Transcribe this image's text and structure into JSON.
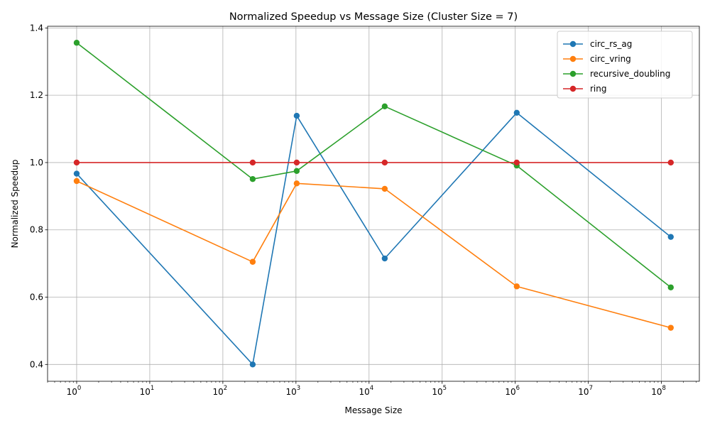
{
  "chart_data": {
    "type": "line",
    "title": "Normalized Speedup vs Message Size (Cluster Size = 7)",
    "xlabel": "Message Size",
    "ylabel": "Normalized Speedup",
    "xscale": "log",
    "xlim": [
      0.4,
      330000000
    ],
    "ylim": [
      0.35,
      1.405
    ],
    "grid": true,
    "legend_position": "top-right",
    "x_ticks": [
      {
        "value": 1,
        "base": "10",
        "exp": "0"
      },
      {
        "value": 10,
        "base": "10",
        "exp": "1"
      },
      {
        "value": 100,
        "base": "10",
        "exp": "2"
      },
      {
        "value": 1000,
        "base": "10",
        "exp": "3"
      },
      {
        "value": 10000,
        "base": "10",
        "exp": "4"
      },
      {
        "value": 100000,
        "base": "10",
        "exp": "5"
      },
      {
        "value": 1000000,
        "base": "10",
        "exp": "6"
      },
      {
        "value": 10000000,
        "base": "10",
        "exp": "7"
      },
      {
        "value": 100000000,
        "base": "10",
        "exp": "8"
      }
    ],
    "y_ticks": [
      "0.4",
      "0.6",
      "0.8",
      "1.0",
      "1.2",
      "1.4"
    ],
    "x": [
      1,
      256,
      1024,
      16384,
      1048576,
      134217728
    ],
    "series": [
      {
        "name": "circ_rs_ag",
        "color": "#1f77b4",
        "values": [
          0.967,
          0.4,
          1.139,
          0.715,
          1.148,
          0.779
        ]
      },
      {
        "name": "circ_vring",
        "color": "#ff7f0e",
        "values": [
          0.945,
          0.705,
          0.938,
          0.922,
          0.632,
          0.509
        ]
      },
      {
        "name": "recursive_doubling",
        "color": "#2ca02c",
        "values": [
          1.356,
          0.951,
          0.975,
          1.167,
          0.991,
          0.629
        ]
      },
      {
        "name": "ring",
        "color": "#d62728",
        "values": [
          1.0,
          1.0,
          1.0,
          1.0,
          1.0,
          1.0
        ]
      }
    ]
  }
}
